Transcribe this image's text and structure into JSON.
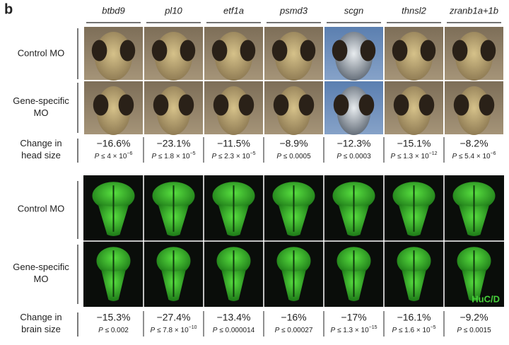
{
  "panel_label": "b",
  "columns": [
    {
      "gene": "btbd9",
      "head_change": {
        "value": "−16.6%",
        "p": {
          "symbol": "P",
          "relation": "≤ 4 × 10",
          "exponent": "−6"
        }
      },
      "brain_change": {
        "value": "−15.3%",
        "p": {
          "symbol": "P",
          "relation": "≤ 0.002"
        }
      }
    },
    {
      "gene": "pl10",
      "head_change": {
        "value": "−23.1%",
        "p": {
          "symbol": "P",
          "relation": "≤ 1.8 × 10",
          "exponent": "−5"
        }
      },
      "brain_change": {
        "value": "−27.4%",
        "p": {
          "symbol": "P",
          "relation": "≤ 7.8 × 10",
          "exponent": "−10"
        }
      }
    },
    {
      "gene": "etf1a",
      "head_change": {
        "value": "−11.5%",
        "p": {
          "symbol": "P",
          "relation": "≤ 2.3 × 10",
          "exponent": "−5"
        }
      },
      "brain_change": {
        "value": "−13.4%",
        "p": {
          "symbol": "P",
          "relation": "≤ 0.000014"
        }
      }
    },
    {
      "gene": "psmd3",
      "head_change": {
        "value": "−8.9%",
        "p": {
          "symbol": "P",
          "relation": "≤ 0.0005"
        }
      },
      "brain_change": {
        "value": "−16%",
        "p": {
          "symbol": "P",
          "relation": "≤ 0.00027"
        }
      }
    },
    {
      "gene": "scgn",
      "head_change": {
        "value": "−12.3%",
        "p": {
          "symbol": "P",
          "relation": "≤ 0.0003"
        }
      },
      "brain_change": {
        "value": "−17%",
        "p": {
          "symbol": "P",
          "relation": "≤ 1.3 × 10",
          "exponent": "−15"
        }
      }
    },
    {
      "gene": "thnsl2",
      "head_change": {
        "value": "−15.1%",
        "p": {
          "symbol": "P",
          "relation": "≤ 1.3 × 10",
          "exponent": "−12"
        }
      },
      "brain_change": {
        "value": "−16.1%",
        "p": {
          "symbol": "P",
          "relation": "≤ 1.6 × 10",
          "exponent": "−5"
        }
      }
    },
    {
      "gene": "zranb1a+1b",
      "head_change": {
        "value": "−8.2%",
        "p": {
          "symbol": "P",
          "relation": "≤ 5.4 × 10",
          "exponent": "−6"
        }
      },
      "brain_change": {
        "value": "−9.2%",
        "p": {
          "symbol": "P",
          "relation": "≤ 0.0015"
        }
      }
    }
  ],
  "row_labels": {
    "head_control": "Control MO",
    "head_specific": [
      "Gene-specific",
      "MO"
    ],
    "head_change": [
      "Change in",
      "head size"
    ],
    "brain_control": "Control MO",
    "brain_specific": [
      "Gene-specific",
      "MO"
    ],
    "brain_change": [
      "Change in",
      "brain size"
    ]
  },
  "stain_label": "HuC/D"
}
